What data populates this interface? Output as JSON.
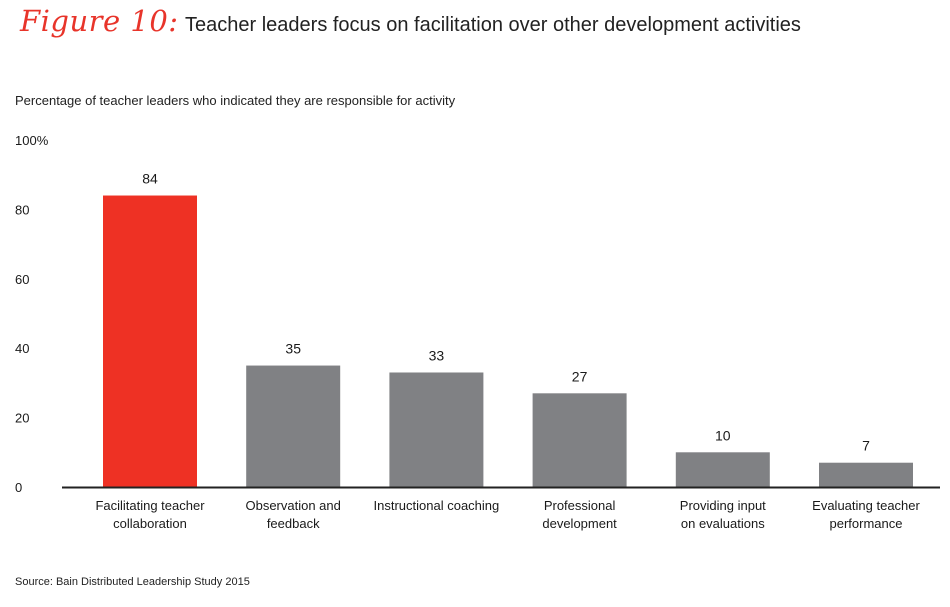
{
  "figure": {
    "label": "Figure 10:",
    "title": "Teacher leaders focus on facilitation over other development activities"
  },
  "subtitle": "Percentage of teacher leaders who indicated they are responsible for activity",
  "source": "Source: Bain Distributed Leadership Study 2015",
  "colors": {
    "highlight": "#ee3124",
    "bar": "#808184",
    "axis": "#222222",
    "accent_text": "#e8342a"
  },
  "chart_data": {
    "type": "bar",
    "title": "",
    "xlabel": "",
    "ylabel": "",
    "ylim": [
      0,
      100
    ],
    "yticks": [
      {
        "value": 0,
        "label": "0"
      },
      {
        "value": 20,
        "label": "20"
      },
      {
        "value": 40,
        "label": "40"
      },
      {
        "value": 60,
        "label": "60"
      },
      {
        "value": 80,
        "label": "80"
      },
      {
        "value": 100,
        "label": "100%"
      }
    ],
    "grid": false,
    "categories": [
      [
        "Facilitating teacher",
        "collaboration"
      ],
      [
        "Observation and",
        "feedback"
      ],
      [
        "Instructional coaching"
      ],
      [
        "Professional",
        "development"
      ],
      [
        "Providing input",
        "on evaluations"
      ],
      [
        "Evaluating teacher",
        "performance"
      ]
    ],
    "values": [
      84,
      35,
      33,
      27,
      10,
      7
    ],
    "data_labels": [
      "84",
      "35",
      "33",
      "27",
      "10",
      "7"
    ],
    "highlight_index": 0
  }
}
